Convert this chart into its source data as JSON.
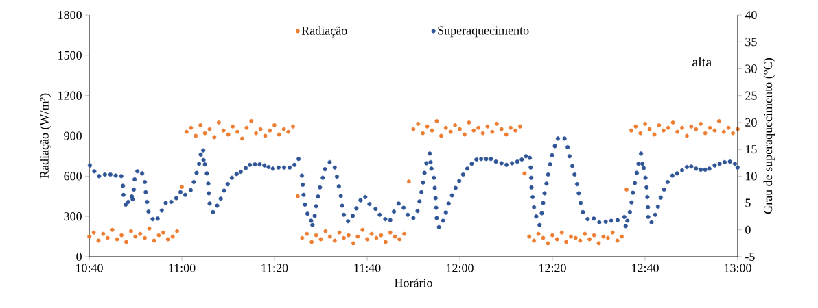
{
  "chart_data": {
    "type": "scatter",
    "xlabel": "Horário",
    "ylabel": "Radiação (W/m²)",
    "y2label": "Grau de superaquecimento (°C)",
    "annotations": [
      "alta"
    ],
    "legend": "top",
    "xlim": [
      10.6667,
      13.0
    ],
    "xticks": [
      {
        "value": 10.6667,
        "label": "10:40"
      },
      {
        "value": 11.0,
        "label": "11:00"
      },
      {
        "value": 11.3333,
        "label": "11:20"
      },
      {
        "value": 11.6667,
        "label": "11:40"
      },
      {
        "value": 12.0,
        "label": "12:00"
      },
      {
        "value": 12.3333,
        "label": "12:20"
      },
      {
        "value": 12.6667,
        "label": "12:40"
      },
      {
        "value": 13.0,
        "label": "13:00"
      }
    ],
    "ylim": [
      0,
      1800
    ],
    "yticks": [
      0,
      300,
      600,
      900,
      1200,
      1500,
      1800
    ],
    "y2lim": [
      -5,
      40
    ],
    "y2ticks": [
      -5,
      0,
      5,
      10,
      15,
      20,
      25,
      30,
      35,
      40
    ],
    "x": [
      10.667,
      10.683,
      10.7,
      10.717,
      10.733,
      10.75,
      10.767,
      10.783,
      10.8,
      10.817,
      10.833,
      10.85,
      10.867,
      10.883,
      10.9,
      10.917,
      10.933,
      10.95,
      10.967,
      10.983,
      11.0,
      11.017,
      11.033,
      11.05,
      11.067,
      11.083,
      11.1,
      11.117,
      11.133,
      11.15,
      11.167,
      11.183,
      11.2,
      11.217,
      11.233,
      11.25,
      11.267,
      11.283,
      11.3,
      11.317,
      11.333,
      11.35,
      11.367,
      11.383,
      11.4,
      11.417,
      11.433,
      11.45,
      11.467,
      11.483,
      11.5,
      11.517,
      11.533,
      11.55,
      11.567,
      11.583,
      11.6,
      11.617,
      11.633,
      11.65,
      11.667,
      11.683,
      11.7,
      11.717,
      11.733,
      11.75,
      11.767,
      11.783,
      11.8,
      11.817,
      11.833,
      11.85,
      11.867,
      11.883,
      11.9,
      11.917,
      11.933,
      11.95,
      11.967,
      11.983,
      12.0,
      12.017,
      12.033,
      12.05,
      12.067,
      12.083,
      12.1,
      12.117,
      12.133,
      12.15,
      12.167,
      12.183,
      12.2,
      12.217,
      12.233,
      12.25,
      12.267,
      12.283,
      12.3,
      12.317,
      12.333,
      12.35,
      12.367,
      12.383,
      12.4,
      12.417,
      12.433,
      12.45,
      12.467,
      12.483,
      12.5,
      12.517,
      12.533,
      12.55,
      12.567,
      12.583,
      12.6,
      12.617,
      12.633,
      12.65,
      12.667,
      12.683,
      12.7,
      12.717,
      12.733,
      12.75,
      12.767,
      12.783,
      12.8,
      12.817,
      12.833,
      12.85,
      12.867,
      12.883,
      12.9,
      12.917,
      12.933,
      12.95,
      12.967,
      12.983,
      13.0
    ],
    "series": [
      {
        "name": "Radiação",
        "color": "#ed7d31",
        "values": [
          150,
          180,
          120,
          170,
          140,
          200,
          130,
          160,
          110,
          190,
          150,
          170,
          140,
          210,
          120,
          160,
          180,
          130,
          150,
          190,
          520,
          930,
          960,
          900,
          980,
          920,
          950,
          890,
          1000,
          940,
          910,
          970,
          930,
          880,
          960,
          1010,
          920,
          950,
          900,
          940,
          980,
          910,
          950,
          930,
          970,
          450,
          140,
          170,
          110,
          160,
          130,
          190,
          150,
          120,
          180,
          140,
          160,
          100,
          150,
          200,
          130,
          170,
          140,
          160,
          110,
          180,
          150,
          130,
          170,
          560,
          950,
          990,
          920,
          970,
          940,
          1010,
          900,
          960,
          930,
          980,
          950,
          910,
          1000,
          940,
          960,
          920,
          970,
          930,
          990,
          950,
          910,
          960,
          940,
          970,
          620,
          150,
          120,
          170,
          140,
          100,
          160,
          130,
          180,
          110,
          150,
          140,
          120,
          170,
          130,
          160,
          100,
          150,
          140,
          180,
          120,
          150,
          500,
          940,
          970,
          920,
          990,
          950,
          910,
          980,
          940,
          960,
          1000,
          930,
          960,
          900,
          970,
          950,
          990,
          920,
          960,
          940,
          1010,
          930,
          960,
          920,
          950
        ]
      },
      {
        "name": "Superaquecimento",
        "color": "#2f5597",
        "axis": "y2",
        "x": [
          10.669,
          10.685,
          10.702,
          10.723,
          10.743,
          10.762,
          10.782,
          10.788,
          10.79,
          10.798,
          10.807,
          10.82,
          10.823,
          10.827,
          10.83,
          10.84,
          10.857,
          10.867,
          10.87,
          10.875,
          10.88,
          10.895,
          10.913,
          10.928,
          10.942,
          10.962,
          10.98,
          10.995,
          11.012,
          11.032,
          11.043,
          11.053,
          11.062,
          11.068,
          11.077,
          11.078,
          11.083,
          11.09,
          11.095,
          11.097,
          11.1,
          11.112,
          11.127,
          11.14,
          11.152,
          11.165,
          11.18,
          11.197,
          11.212,
          11.23,
          11.245,
          11.263,
          11.28,
          11.297,
          11.312,
          11.328,
          11.348,
          11.368,
          11.388,
          11.405,
          11.42,
          11.432,
          11.435,
          11.438,
          11.443,
          11.452,
          11.465,
          11.47,
          11.478,
          11.483,
          11.49,
          11.497,
          11.507,
          11.515,
          11.532,
          11.55,
          11.558,
          11.565,
          11.572,
          11.577,
          11.583,
          11.598,
          11.615,
          11.628,
          11.643,
          11.66,
          11.675,
          11.697,
          11.712,
          11.732,
          11.75,
          11.763,
          11.78,
          11.798,
          11.813,
          11.833,
          11.848,
          11.855,
          11.862,
          11.868,
          11.873,
          11.88,
          11.892,
          11.895,
          11.898,
          11.907,
          11.91,
          11.913,
          11.915,
          11.917,
          11.925,
          11.94,
          11.95,
          11.96,
          11.972,
          11.985,
          11.998,
          12.012,
          12.027,
          12.043,
          12.06,
          12.077,
          12.095,
          12.112,
          12.13,
          12.15,
          12.168,
          12.188,
          12.207,
          12.223,
          12.238,
          12.252,
          12.255,
          12.257,
          12.258,
          12.262,
          12.267,
          12.275,
          12.287,
          12.295,
          12.3,
          12.305,
          12.312,
          12.318,
          12.325,
          12.332,
          12.342,
          12.353,
          12.377,
          12.388,
          12.395,
          12.405,
          12.413,
          12.422,
          12.428,
          12.435,
          12.443,
          12.46,
          12.482,
          12.502,
          12.525,
          12.545,
          12.568,
          12.592,
          12.597,
          12.603,
          12.612,
          12.618,
          12.623,
          12.63,
          12.637,
          12.643,
          12.652,
          12.657,
          12.662,
          12.668,
          12.672,
          12.675,
          12.677,
          12.678,
          12.69,
          12.703,
          12.713,
          12.723,
          12.735,
          12.748,
          12.765,
          12.782,
          12.8,
          12.817,
          12.833,
          12.85,
          12.867,
          12.883,
          12.898,
          12.917,
          12.935,
          12.953,
          12.972,
          12.99,
          13.0
        ],
        "values": [
          12.0,
          10.9,
          10.0,
          10.3,
          10.3,
          10.1,
          10.0,
          8.2,
          6.5,
          4.7,
          5.2,
          6.2,
          5.7,
          7.5,
          9.4,
          10.9,
          10.5,
          8.9,
          7.0,
          5.2,
          3.4,
          2.0,
          2.1,
          3.6,
          5.0,
          5.2,
          5.9,
          7.0,
          6.5,
          7.4,
          8.9,
          10.6,
          12.3,
          14.0,
          14.8,
          13.0,
          12.2,
          10.5,
          8.6,
          6.8,
          4.9,
          3.3,
          4.5,
          5.8,
          7.3,
          8.5,
          9.7,
          10.4,
          10.8,
          11.5,
          12.1,
          12.2,
          12.2,
          12.0,
          11.7,
          11.4,
          11.6,
          11.6,
          11.6,
          12.1,
          13.2,
          10.1,
          8.4,
          6.5,
          4.7,
          3.0,
          1.7,
          0.9,
          2.6,
          4.4,
          6.2,
          7.9,
          9.7,
          11.3,
          12.6,
          11.6,
          9.9,
          8.1,
          6.3,
          4.5,
          2.8,
          1.6,
          2.6,
          4.0,
          5.5,
          6.1,
          4.8,
          3.9,
          2.8,
          2.0,
          1.8,
          3.4,
          4.9,
          4.1,
          2.8,
          2.2,
          3.5,
          5.3,
          7.0,
          8.8,
          10.6,
          12.4,
          14.2,
          12.6,
          11.4,
          9.7,
          7.8,
          5.9,
          4.1,
          2.2,
          0.5,
          1.7,
          3.2,
          4.9,
          6.4,
          7.8,
          9.1,
          10.3,
          11.4,
          12.3,
          13.1,
          13.2,
          13.2,
          13.2,
          12.7,
          12.4,
          12.1,
          12.4,
          12.7,
          13.1,
          13.7,
          13.4,
          11.6,
          9.7,
          7.9,
          6.1,
          4.2,
          2.5,
          0.9,
          3.1,
          5.0,
          6.8,
          8.6,
          10.3,
          12.2,
          13.9,
          15.6,
          17.0,
          17.0,
          15.4,
          13.7,
          11.9,
          10.3,
          8.5,
          6.8,
          5.0,
          3.3,
          2.0,
          2.1,
          1.4,
          1.5,
          1.7,
          1.8,
          2.4,
          0.7,
          1.7,
          3.3,
          5.1,
          6.9,
          8.7,
          10.6,
          12.3,
          14.2,
          12.3,
          11.5,
          9.7,
          7.9,
          6.1,
          4.2,
          2.4,
          1.4,
          2.8,
          4.3,
          6.0,
          7.5,
          8.9,
          10.1,
          10.5,
          11.1,
          11.7,
          11.8,
          11.4,
          11.2,
          11.2,
          11.4,
          12.0,
          12.3,
          12.6,
          12.7,
          12.3,
          11.6
        ]
      }
    ]
  }
}
